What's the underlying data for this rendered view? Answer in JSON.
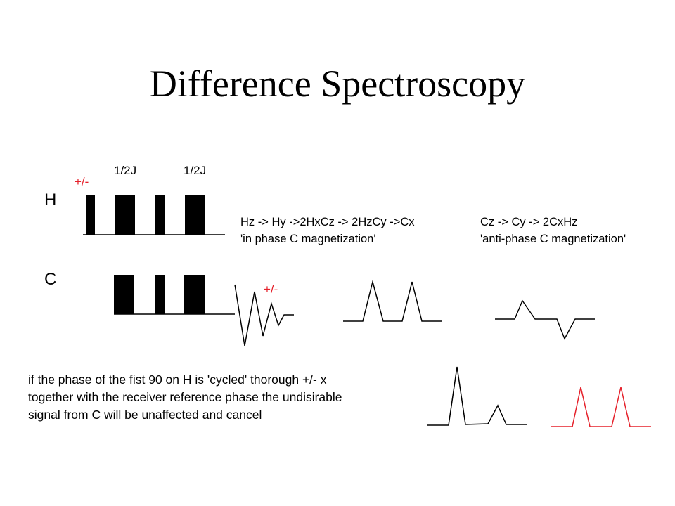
{
  "title": "Difference Spectroscopy",
  "channels": {
    "h": "H",
    "c": "C"
  },
  "delays": [
    "1/2J",
    "1/2J"
  ],
  "phase_labels": {
    "h_pulse": "+/-",
    "c_signal": "+/-"
  },
  "path_in_phase": {
    "line1": "Hz -> Hy ->2HxCz -> 2HzCy ->Cx",
    "line2": "'in phase C magnetization'"
  },
  "path_anti_phase": {
    "line1": "Cz -> Cy -> 2CxHz",
    "line2": "'anti-phase C magnetization'"
  },
  "note": [
    "if the phase of the fist 90 on H is 'cycled' thorough +/- x",
    "together with the receiver reference phase the undisirable",
    "signal from C will be unaffected and cancel"
  ],
  "colors": {
    "ink": "#000000",
    "accent": "#e5202a"
  }
}
